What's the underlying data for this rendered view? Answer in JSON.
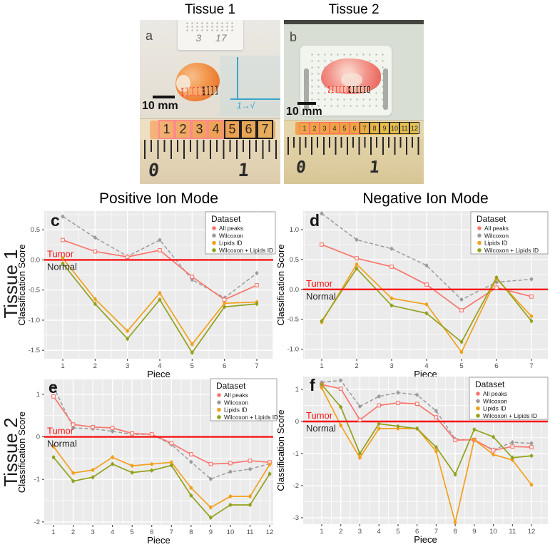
{
  "photos": {
    "panels": [
      {
        "title": "Tissue 1",
        "label": "a",
        "cassette_text": "3 17",
        "annotation": "1→√",
        "scale_bar": "10 mm",
        "pieces": [
          "1",
          "2",
          "3",
          "4",
          "5",
          "6",
          "7"
        ],
        "red_outline_count": 4,
        "ruler_numbers": [
          "0",
          "1"
        ]
      },
      {
        "title": "Tissue 2",
        "label": "b",
        "scale_bar": "10 mm",
        "pieces": [
          "1",
          "2",
          "3",
          "4",
          "5",
          "6",
          "7",
          "8",
          "9",
          "10",
          "11",
          "12"
        ],
        "red_outline_count": 6,
        "ruler_numbers": [
          "0",
          "1"
        ]
      }
    ]
  },
  "charts": {
    "col_titles": [
      "Positive Ion Mode",
      "Negative Ion Mode"
    ],
    "row_labels": [
      "Tissue 1",
      "Tissue 2"
    ],
    "legend": {
      "title": "Dataset",
      "items": [
        {
          "label": "All peaks",
          "color": "#F8766D"
        },
        {
          "label": "Wilcoxon",
          "color": "#9B9B9B"
        },
        {
          "label": "Lipids ID",
          "color": "#F2A01D"
        },
        {
          "label": "Wilcoxon + Lipids ID",
          "color": "#93A11D"
        }
      ]
    },
    "zero_line": {
      "color": "#FA1414",
      "above": "Tumor",
      "below": "Normal"
    }
  },
  "chart_data": [
    {
      "id": "c",
      "type": "line",
      "panel_label": "c",
      "tissue": "Tissue 1",
      "title": "Positive Ion Mode",
      "xlabel": "Piece",
      "ylabel": "Classification Score",
      "x": [
        1,
        2,
        3,
        4,
        5,
        6,
        7
      ],
      "ytick_labels": [
        "0.5",
        "0.0",
        "-0.5",
        "-1.0",
        "-1.5"
      ],
      "ytick_values": [
        0.5,
        0,
        -0.5,
        -1,
        -1.5
      ],
      "ylim": [
        -1.64,
        0.81
      ],
      "zero_line": 0,
      "grid": true,
      "legend_position": "top-right",
      "series": [
        {
          "name": "All peaks",
          "values": [
            0.33,
            0.14,
            0.05,
            0.16,
            -0.28,
            -0.66,
            -0.42
          ]
        },
        {
          "name": "Wilcoxon",
          "dashed": true,
          "values": [
            0.72,
            0.37,
            0.06,
            0.33,
            -0.33,
            -0.63,
            -0.22
          ]
        },
        {
          "name": "Lipids ID",
          "values": [
            0.03,
            -0.65,
            -1.18,
            -0.55,
            -1.4,
            -0.72,
            -0.7
          ]
        },
        {
          "name": "Wilcoxon + Lipids ID",
          "values": [
            -0.06,
            -0.73,
            -1.31,
            -0.66,
            -1.54,
            -0.78,
            -0.73
          ]
        }
      ]
    },
    {
      "id": "d",
      "type": "line",
      "panel_label": "d",
      "tissue": "Tissue 1",
      "title": "Negative Ion Mode",
      "xlabel": "Piece",
      "ylabel": "Classification Score",
      "x": [
        1,
        2,
        3,
        4,
        5,
        6,
        7
      ],
      "ytick_labels": [
        "1.0",
        "0.5",
        "0.0",
        "-0.5",
        "-1.0"
      ],
      "ytick_values": [
        1,
        0.5,
        0,
        -0.5,
        -1
      ],
      "ylim": [
        -1.16,
        1.31
      ],
      "zero_line": 0,
      "grid": true,
      "legend_position": "top-right",
      "series": [
        {
          "name": "All peaks",
          "values": [
            0.75,
            0.52,
            0.38,
            0.08,
            -0.35,
            0.03,
            -0.12
          ]
        },
        {
          "name": "Wilcoxon",
          "dashed": true,
          "values": [
            1.27,
            0.83,
            0.68,
            0.4,
            -0.17,
            0.12,
            0.17
          ]
        },
        {
          "name": "Lipids ID",
          "values": [
            -0.55,
            0.42,
            -0.15,
            -0.25,
            -1.05,
            0.18,
            -0.45
          ]
        },
        {
          "name": "Wilcoxon + Lipids ID",
          "values": [
            -0.53,
            0.35,
            -0.27,
            -0.4,
            -0.88,
            0.2,
            -0.53
          ]
        }
      ]
    },
    {
      "id": "e",
      "type": "line",
      "panel_label": "e",
      "tissue": "Tissue 2",
      "title": "Positive Ion Mode",
      "xlabel": "Piece",
      "ylabel": "Classification Score",
      "x": [
        1,
        2,
        3,
        4,
        5,
        6,
        7,
        8,
        9,
        10,
        11,
        12
      ],
      "ytick_labels": [
        "1",
        "0",
        "-1",
        "-2"
      ],
      "ytick_values": [
        1,
        0,
        -1,
        -2
      ],
      "ylim": [
        -2.07,
        1.35
      ],
      "zero_line": 0,
      "grid": true,
      "legend_position": "top-right",
      "series": [
        {
          "name": "All peaks",
          "values": [
            0.95,
            0.29,
            0.23,
            0.21,
            0.08,
            0.06,
            -0.15,
            -0.41,
            -0.64,
            -0.62,
            -0.56,
            -0.6
          ]
        },
        {
          "name": "Wilcoxon",
          "dashed": true,
          "values": [
            1.18,
            0.21,
            0.19,
            0.13,
            0.06,
            0.06,
            -0.18,
            -0.59,
            -0.99,
            -0.82,
            -0.76,
            -0.63
          ]
        },
        {
          "name": "Lipids ID",
          "values": [
            -0.23,
            -0.85,
            -0.78,
            -0.48,
            -0.68,
            -0.64,
            -0.6,
            -1.2,
            -1.66,
            -1.4,
            -1.4,
            -0.65
          ]
        },
        {
          "name": "Wilcoxon + Lipids ID",
          "values": [
            -0.48,
            -1.04,
            -0.95,
            -0.64,
            -0.84,
            -0.79,
            -0.67,
            -1.38,
            -1.9,
            -1.6,
            -1.6,
            -0.87
          ]
        }
      ]
    },
    {
      "id": "f",
      "type": "line",
      "panel_label": "f",
      "tissue": "Tissue 2",
      "title": "Negative Ion Mode",
      "xlabel": "Piece",
      "ylabel": "Classification Score",
      "x": [
        1,
        2,
        3,
        4,
        5,
        6,
        7,
        8,
        9,
        10,
        11,
        12
      ],
      "ytick_labels": [
        "1",
        "0",
        "-1",
        "-2",
        "-3"
      ],
      "ytick_values": [
        1,
        0,
        -1,
        -2,
        -3
      ],
      "ylim": [
        -3.2,
        1.4
      ],
      "zero_line": 0,
      "grid": true,
      "legend_position": "top-right",
      "series": [
        {
          "name": "All peaks",
          "values": [
            1.15,
            1.02,
            0.05,
            0.5,
            0.58,
            0.55,
            0.13,
            -0.58,
            -0.57,
            -0.9,
            -0.78,
            -0.8
          ]
        },
        {
          "name": "Wilcoxon",
          "dashed": true,
          "values": [
            1.22,
            1.28,
            0.47,
            0.78,
            0.9,
            0.83,
            0.33,
            -0.55,
            -0.58,
            -0.88,
            -0.65,
            -0.68
          ]
        },
        {
          "name": "Lipids ID",
          "values": [
            1.05,
            -0.12,
            -1.13,
            -0.22,
            -0.22,
            -0.22,
            -0.93,
            -3.15,
            -0.57,
            -1.03,
            -1.2,
            -1.97
          ]
        },
        {
          "name": "Wilcoxon + Lipids ID",
          "values": [
            1.15,
            0.45,
            -1.0,
            -0.07,
            -0.15,
            -0.22,
            -0.8,
            -1.65,
            -0.25,
            -0.48,
            -1.13,
            -1.07
          ]
        }
      ]
    }
  ]
}
